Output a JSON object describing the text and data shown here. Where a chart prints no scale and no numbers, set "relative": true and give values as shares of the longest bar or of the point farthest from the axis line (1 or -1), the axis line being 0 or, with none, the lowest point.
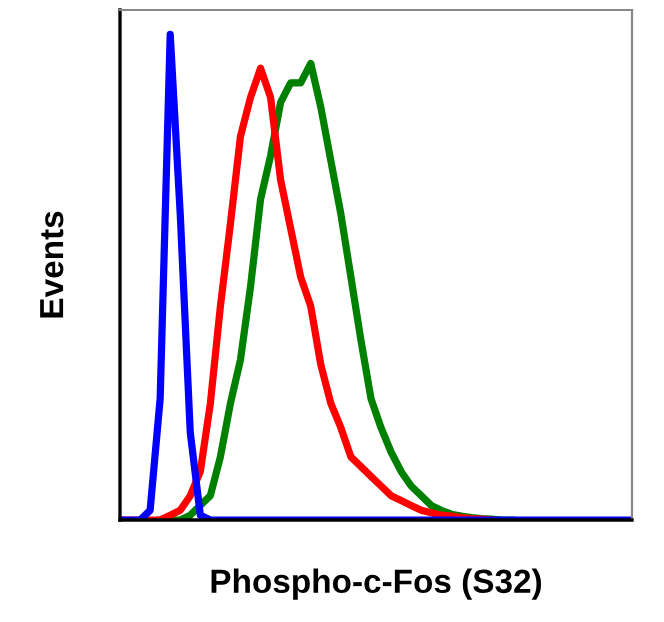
{
  "chart_data": {
    "type": "line",
    "relative": true,
    "xlabel": "Phospho-c-Fos (S32)",
    "ylabel": "Events",
    "legend": false,
    "grid": false,
    "marker": "none",
    "line_style": "solid",
    "categories": [
      null,
      null,
      null,
      null,
      null,
      null,
      null,
      null,
      null,
      null,
      null,
      null,
      null,
      null,
      null,
      null,
      null,
      null,
      null,
      null,
      null,
      null,
      null,
      null,
      null,
      null,
      null,
      null,
      null,
      null,
      null,
      null,
      null,
      null,
      null,
      null,
      null,
      null,
      null,
      null,
      null,
      null,
      null,
      null,
      null,
      null,
      null,
      null,
      null,
      null,
      null,
      null
    ],
    "series": [
      {
        "color": "#008000",
        "values": [
          null,
          null,
          null,
          null,
          0,
          0,
          0,
          0.01,
          0.03,
          0.05,
          0.13,
          0.24,
          0.33,
          0.48,
          0.66,
          0.75,
          0.86,
          0.9,
          0.9,
          0.94,
          0.85,
          0.74,
          0.63,
          0.5,
          0.37,
          0.25,
          0.19,
          0.14,
          0.1,
          0.07,
          0.05,
          0.03,
          0.02,
          0.012,
          0.008,
          0.005,
          0.003,
          0.002,
          0,
          0,
          null,
          null,
          null,
          null,
          null,
          null,
          null,
          null,
          null,
          null,
          null,
          null
        ]
      },
      {
        "color": "#ff0000",
        "values": [
          0,
          0,
          0,
          0,
          0,
          0.01,
          0.02,
          0.05,
          0.1,
          0.24,
          0.44,
          0.61,
          0.79,
          0.87,
          0.93,
          0.87,
          0.7,
          0.6,
          0.5,
          0.44,
          0.32,
          0.24,
          0.19,
          0.13,
          0.11,
          0.09,
          0.07,
          0.05,
          0.04,
          0.03,
          0.02,
          0.015,
          0.01,
          0.008,
          0.005,
          0.003,
          0.002,
          0,
          null,
          null,
          null,
          null,
          null,
          null,
          null,
          null,
          null,
          null,
          null,
          null,
          null,
          null
        ]
      },
      {
        "color": "#0000ff",
        "values": [
          0,
          0,
          0,
          0.02,
          0.25,
          1,
          0.63,
          0.18,
          0.01,
          0,
          0,
          0,
          0,
          0,
          0,
          0,
          0,
          0,
          0,
          0,
          0,
          0,
          0,
          0,
          0,
          0,
          0,
          0,
          0,
          0,
          0,
          0,
          0,
          0,
          0,
          0,
          0,
          0,
          0,
          0,
          0,
          0,
          0,
          0,
          0,
          0,
          0,
          0,
          0,
          0,
          0,
          0
        ]
      }
    ]
  }
}
